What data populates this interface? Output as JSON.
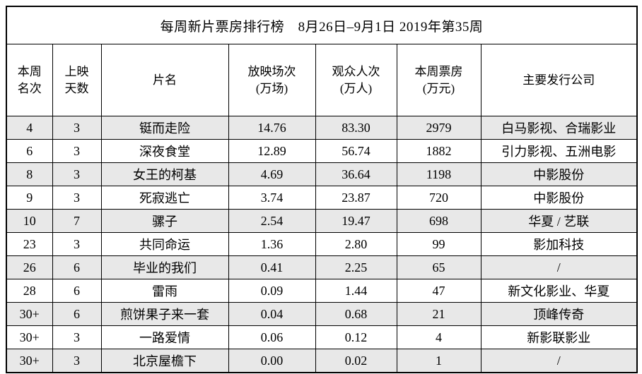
{
  "title": "每周新片票房排行榜　8月26日–9月1日 2019年第35周",
  "table": {
    "columns": [
      {
        "key": "rank",
        "lines": [
          "本周",
          "名次"
        ]
      },
      {
        "key": "days",
        "lines": [
          "上映",
          "天数"
        ]
      },
      {
        "key": "film",
        "lines": [
          "片名"
        ]
      },
      {
        "key": "screenings",
        "lines": [
          "放映场次",
          "(万场)"
        ]
      },
      {
        "key": "admissions",
        "lines": [
          "观众人次",
          "(万人)"
        ]
      },
      {
        "key": "box_office",
        "lines": [
          "本周票房",
          "(万元)"
        ]
      },
      {
        "key": "distributor",
        "lines": [
          "主要发行公司"
        ]
      }
    ],
    "rows": [
      {
        "rank": "4",
        "days": "3",
        "film": "铤而走险",
        "screenings": "14.76",
        "admissions": "83.30",
        "box_office": "2979",
        "distributor": "白马影视、合瑞影业"
      },
      {
        "rank": "6",
        "days": "3",
        "film": "深夜食堂",
        "screenings": "12.89",
        "admissions": "56.74",
        "box_office": "1882",
        "distributor": "引力影视、五洲电影"
      },
      {
        "rank": "8",
        "days": "3",
        "film": "女王的柯基",
        "screenings": "4.69",
        "admissions": "36.64",
        "box_office": "1198",
        "distributor": "中影股份"
      },
      {
        "rank": "9",
        "days": "3",
        "film": "死寂逃亡",
        "screenings": "3.74",
        "admissions": "23.87",
        "box_office": "720",
        "distributor": "中影股份"
      },
      {
        "rank": "10",
        "days": "7",
        "film": "骡子",
        "screenings": "2.54",
        "admissions": "19.47",
        "box_office": "698",
        "distributor": "华夏 / 艺联"
      },
      {
        "rank": "23",
        "days": "3",
        "film": "共同命运",
        "screenings": "1.36",
        "admissions": "2.80",
        "box_office": "99",
        "distributor": "影加科技"
      },
      {
        "rank": "26",
        "days": "6",
        "film": "毕业的我们",
        "screenings": "0.41",
        "admissions": "2.25",
        "box_office": "65",
        "distributor": "/"
      },
      {
        "rank": "28",
        "days": "6",
        "film": "雷雨",
        "screenings": "0.09",
        "admissions": "1.44",
        "box_office": "47",
        "distributor": "新文化影业、华夏"
      },
      {
        "rank": "30+",
        "days": "6",
        "film": "煎饼果子来一套",
        "screenings": "0.04",
        "admissions": "0.68",
        "box_office": "21",
        "distributor": "顶峰传奇"
      },
      {
        "rank": "30+",
        "days": "3",
        "film": "一路爱情",
        "screenings": "0.06",
        "admissions": "0.12",
        "box_office": "4",
        "distributor": "新影联影业"
      },
      {
        "rank": "30+",
        "days": "3",
        "film": "北京屋檐下",
        "screenings": "0.00",
        "admissions": "0.02",
        "box_office": "1",
        "distributor": "/"
      }
    ]
  },
  "chart_data": {
    "type": "table",
    "title": "每周新片票房排行榜 8月26日–9月1日 2019年第35周",
    "columns": [
      "本周名次",
      "上映天数",
      "片名",
      "放映场次(万场)",
      "观众人次(万人)",
      "本周票房(万元)",
      "主要发行公司"
    ],
    "rows": [
      [
        "4",
        "3",
        "铤而走险",
        "14.76",
        "83.30",
        "2979",
        "白马影视、合瑞影业"
      ],
      [
        "6",
        "3",
        "深夜食堂",
        "12.89",
        "56.74",
        "1882",
        "引力影视、五洲电影"
      ],
      [
        "8",
        "3",
        "女王的柯基",
        "4.69",
        "36.64",
        "1198",
        "中影股份"
      ],
      [
        "9",
        "3",
        "死寂逃亡",
        "3.74",
        "23.87",
        "720",
        "中影股份"
      ],
      [
        "10",
        "7",
        "骡子",
        "2.54",
        "19.47",
        "698",
        "华夏 / 艺联"
      ],
      [
        "23",
        "3",
        "共同命运",
        "1.36",
        "2.80",
        "99",
        "影加科技"
      ],
      [
        "26",
        "6",
        "毕业的我们",
        "0.41",
        "2.25",
        "65",
        "/"
      ],
      [
        "28",
        "6",
        "雷雨",
        "0.09",
        "1.44",
        "47",
        "新文化影业、华夏"
      ],
      [
        "30+",
        "6",
        "煎饼果子来一套",
        "0.04",
        "0.68",
        "21",
        "顶峰传奇"
      ],
      [
        "30+",
        "3",
        "一路爱情",
        "0.06",
        "0.12",
        "4",
        "新影联影业"
      ],
      [
        "30+",
        "3",
        "北京屋檐下",
        "0.00",
        "0.02",
        "1",
        "/"
      ]
    ],
    "layout": {
      "grid": "on",
      "alternating_row_shading": "odd rows shaded",
      "film_column_alignment": "left",
      "other_columns_alignment": "center"
    }
  },
  "colors": {
    "border": "#000000",
    "row_alt_bg": "#e8e8e8",
    "background": "#ffffff",
    "text": "#000000"
  }
}
